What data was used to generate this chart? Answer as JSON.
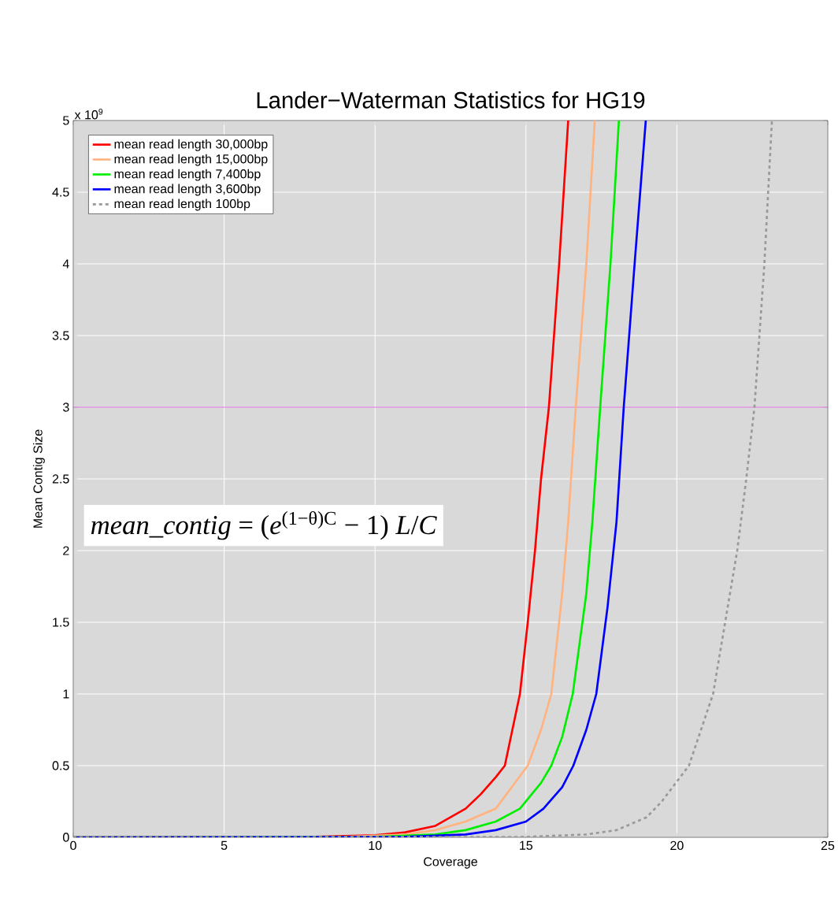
{
  "chart_data": {
    "type": "line",
    "title": "Lander−Waterman Statistics for HG19",
    "xlabel": "Coverage",
    "ylabel": "Mean Contig Size",
    "annotations": [
      "x 10$^{9}$",
      "*mean_contig* = (*e*$^{(1−θ)C}$ − 1) *L*/*C*"
    ],
    "xlim": [
      0,
      25
    ],
    "xticks": [
      0,
      5,
      10,
      15,
      20,
      25
    ],
    "ylim": [
      0,
      5
    ],
    "yticks": [
      0,
      0.5,
      1,
      1.5,
      2,
      2.5,
      3,
      3.5,
      4,
      4.5,
      5
    ],
    "grid": true,
    "legend": "top left",
    "ref_lines": [
      {
        "axis": "y",
        "value": 3,
        "color": "#cc44cc"
      }
    ],
    "series": [
      {
        "name": "mean read length 30,000bp",
        "color": "#ff0000",
        "line_style": "solid",
        "x": [
          0,
          8,
          10,
          11,
          12,
          13,
          13.5,
          14,
          14.3,
          14.8,
          15.06,
          15.3,
          15.5,
          15.76,
          16.1,
          16.4
        ],
        "values": [
          0,
          0.003,
          0.015,
          0.035,
          0.08,
          0.2,
          0.3,
          0.42,
          0.5,
          1,
          1.5,
          2,
          2.5,
          3,
          4,
          5
        ]
      },
      {
        "name": "mean read length 15,000bp",
        "color": "#ffb380",
        "line_style": "solid",
        "x": [
          0,
          9,
          11,
          12,
          13,
          14,
          15.06,
          15.5,
          15.84,
          16.2,
          16.4,
          16.65,
          17,
          17.28
        ],
        "values": [
          0,
          0.003,
          0.02,
          0.05,
          0.11,
          0.2,
          0.5,
          0.75,
          1,
          1.7,
          2.2,
          3,
          4,
          5
        ]
      },
      {
        "name": "mean read length  7,400bp",
        "color": "#00ee00",
        "line_style": "solid",
        "x": [
          0,
          10,
          12,
          13,
          14,
          14.8,
          15.5,
          15.84,
          16.2,
          16.55,
          17,
          17.2,
          17.46,
          17.8,
          18.08
        ],
        "values": [
          0,
          0.003,
          0.02,
          0.05,
          0.11,
          0.2,
          0.38,
          0.5,
          0.7,
          1,
          1.7,
          2.2,
          3,
          4,
          5
        ]
      },
      {
        "name": "mean read length  3,600bp",
        "color": "#0000ff",
        "line_style": "solid",
        "x": [
          0,
          11,
          13,
          14,
          15,
          15.58,
          16.2,
          16.57,
          17,
          17.33,
          17.7,
          18,
          18.24,
          18.6,
          18.97
        ],
        "values": [
          0,
          0.003,
          0.02,
          0.05,
          0.11,
          0.2,
          0.35,
          0.5,
          0.75,
          1,
          1.6,
          2.2,
          3,
          4,
          5
        ]
      },
      {
        "name": "mean read length      100bp",
        "color": "#999999",
        "line_style": "dashed",
        "x": [
          0,
          15,
          17,
          18,
          19,
          19.5,
          20.4,
          21.2,
          21.6,
          22,
          22.3,
          22.57,
          22.9,
          23.15
        ],
        "values": [
          0,
          0.003,
          0.02,
          0.05,
          0.14,
          0.25,
          0.5,
          1,
          1.5,
          2,
          2.5,
          3,
          4,
          5
        ]
      }
    ]
  }
}
